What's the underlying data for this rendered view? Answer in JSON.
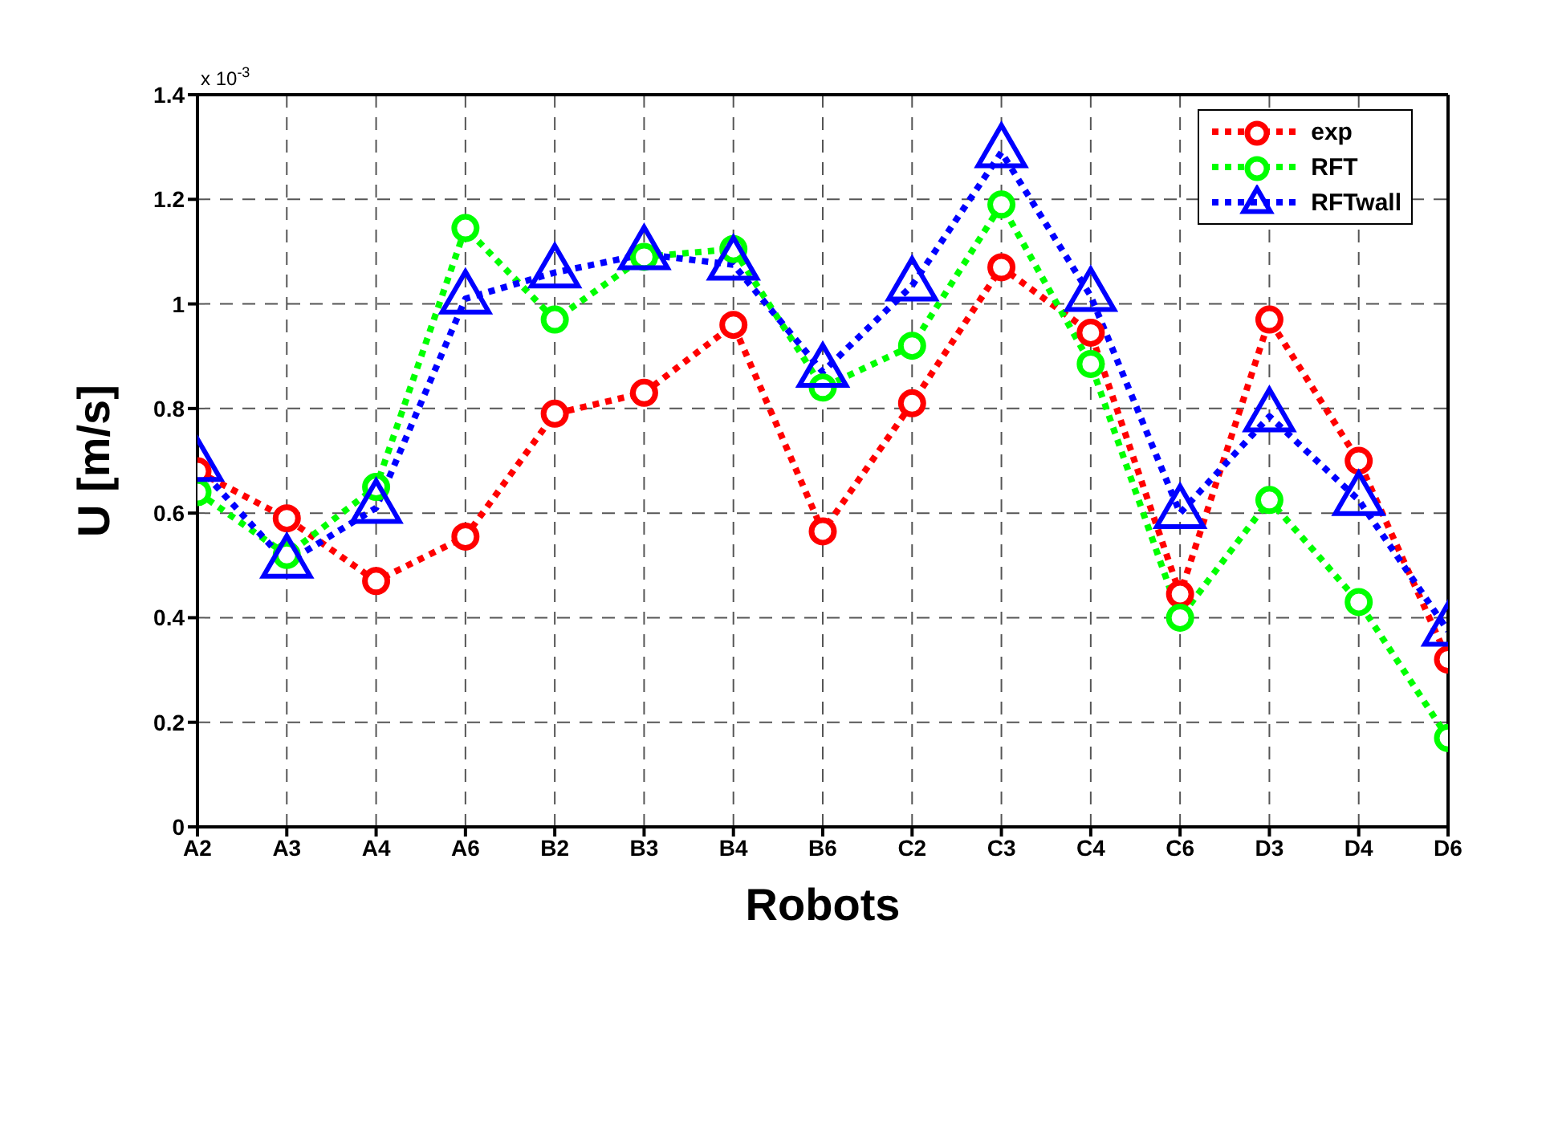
{
  "chart_data": {
    "type": "line",
    "xlabel": "Robots",
    "ylabel": "U [m/s]",
    "annotations": [
      "x 10$^{-3}$"
    ],
    "categories": [
      "A2",
      "A3",
      "A4",
      "A6",
      "B2",
      "B3",
      "B4",
      "B6",
      "C2",
      "C3",
      "C4",
      "C6",
      "D3",
      "D4",
      "D6"
    ],
    "series": [
      {
        "name": "exp",
        "color": "#ff0000",
        "marker": "circle",
        "values": [
          0.68,
          0.59,
          0.47,
          0.555,
          0.79,
          0.83,
          0.96,
          0.565,
          0.81,
          1.07,
          0.945,
          0.445,
          0.97,
          0.7,
          0.32
        ]
      },
      {
        "name": "RFT",
        "color": "#00ff00",
        "marker": "circle",
        "values": [
          0.64,
          0.52,
          0.65,
          1.145,
          0.97,
          1.09,
          1.105,
          0.84,
          0.92,
          1.19,
          0.885,
          0.4,
          0.625,
          0.43,
          0.17
        ]
      },
      {
        "name": "RFTwall",
        "color": "#0000ff",
        "marker": "triangle",
        "values": [
          0.69,
          0.505,
          0.61,
          1.01,
          1.06,
          1.095,
          1.075,
          0.87,
          1.035,
          1.29,
          1.015,
          0.6,
          0.785,
          0.625,
          0.375
        ]
      }
    ],
    "ylim": [
      0,
      1.4
    ],
    "yticks": [
      0,
      0.2,
      0.4,
      0.6,
      0.8,
      1,
      1.2,
      1.4
    ],
    "grid": true,
    "legend": "top right",
    "line_style": "dotted"
  }
}
